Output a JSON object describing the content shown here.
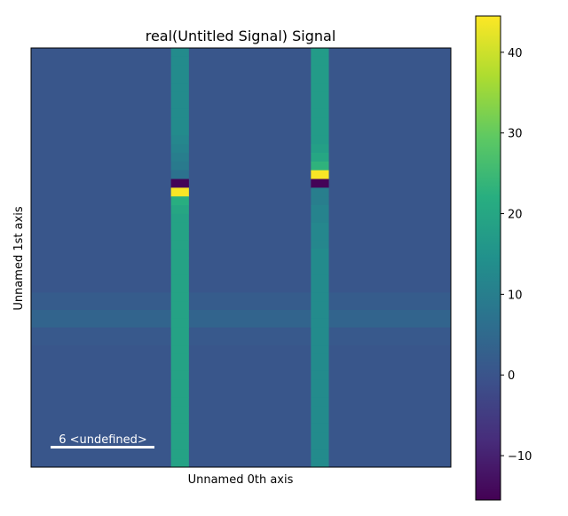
{
  "chart_data": {
    "type": "heatmap",
    "title": "real(Untitled Signal) Signal",
    "xlabel": "Unnamed 0th axis",
    "ylabel": "Unnamed 1st axis",
    "colormap": "viridis",
    "vmin": -15.5,
    "vmax": 44.5,
    "colorbar_ticks": [
      40,
      30,
      20,
      10,
      0,
      -10
    ],
    "colorbar_tick_labels": [
      "40",
      "30",
      "20",
      "10",
      "0",
      "−10"
    ],
    "scalebar_label": "6 <undefined>",
    "grid_rows": 24,
    "grid_cols": 24,
    "background_value": 0.5,
    "column_features": [
      {
        "col": 8,
        "values": [
          13,
          13,
          13,
          13,
          13,
          13,
          13,
          13,
          13,
          13,
          12,
          11,
          10,
          9,
          7,
          -15,
          44,
          22,
          20,
          19,
          19,
          19,
          19,
          19,
          19,
          19,
          19,
          19,
          19,
          19,
          19,
          19,
          19,
          19,
          19,
          19,
          19,
          19,
          19,
          19,
          19,
          19,
          19,
          19,
          19,
          19,
          19,
          19
        ]
      },
      {
        "col": 16,
        "values": [
          17,
          17,
          17,
          17,
          17,
          17,
          17,
          17,
          17,
          17,
          17,
          18,
          20,
          23,
          44,
          -15,
          10,
          10,
          11,
          11,
          12,
          12,
          12,
          13,
          13,
          13,
          13,
          13,
          13,
          13,
          13,
          13,
          13,
          13,
          13,
          13,
          13,
          13,
          13,
          13,
          13,
          13,
          13,
          13,
          13,
          13,
          13,
          13
        ]
      }
    ],
    "row_features": [
      {
        "row": 14,
        "value": 1.8
      },
      {
        "row": 15,
        "value": 3.8
      },
      {
        "row": 16,
        "value": 1.2
      }
    ]
  },
  "colors": {
    "axis": "#000000",
    "scalebar": "#ffffff"
  }
}
